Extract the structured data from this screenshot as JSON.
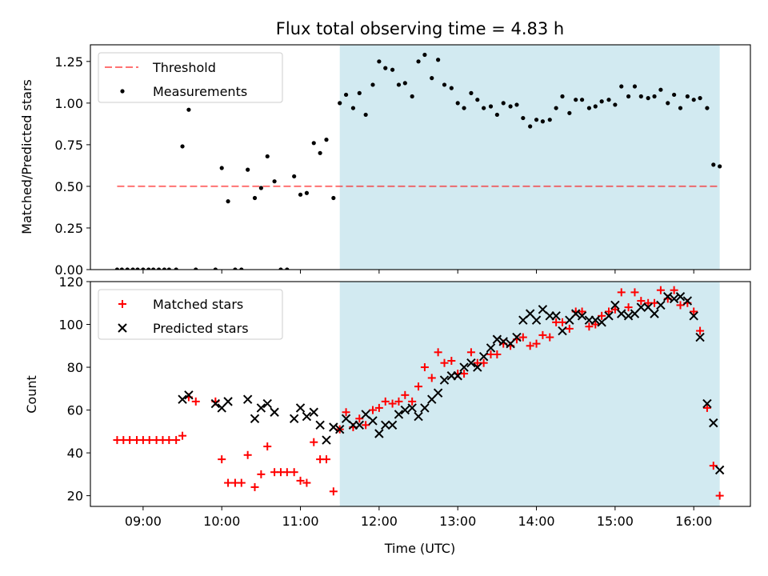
{
  "colors": {
    "shade": "#add8e6",
    "threshold": "#ff0000",
    "matched": "#ff0000",
    "predicted": "#000000",
    "measurement": "#000000"
  },
  "chart_data": [
    {
      "type": "scatter",
      "title": "Flux total observing time = 4.83 h",
      "xlabel": "",
      "ylabel": "Matched/Predicted stars",
      "xlim": [
        8.33,
        16.72
      ],
      "ylim": [
        0,
        1.35
      ],
      "yticks": [
        0,
        0.25,
        0.5,
        0.75,
        1.0,
        1.25
      ],
      "ytick_labels": [
        "0.00",
        "0.25",
        "0.50",
        "0.75",
        "1.00",
        "1.25"
      ],
      "shaded_span": [
        11.5,
        16.33
      ],
      "threshold": {
        "name": "Threshold",
        "y": 0.5,
        "x_range": [
          8.67,
          16.33
        ],
        "style": "dashed"
      },
      "legend": {
        "position": "top-left",
        "entries": [
          "Threshold",
          "Measurements"
        ]
      },
      "series": [
        {
          "name": "Measurements",
          "points": [
            [
              8.67,
              0.0
            ],
            [
              8.73,
              0.0
            ],
            [
              8.8,
              0.0
            ],
            [
              8.87,
              0.0
            ],
            [
              8.93,
              0.0
            ],
            [
              9.0,
              0.0
            ],
            [
              9.07,
              0.0
            ],
            [
              9.13,
              0.0
            ],
            [
              9.2,
              0.0
            ],
            [
              9.27,
              0.0
            ],
            [
              9.33,
              0.0
            ],
            [
              9.42,
              0.0
            ],
            [
              9.5,
              0.74
            ],
            [
              9.58,
              0.96
            ],
            [
              9.67,
              0.0
            ],
            [
              9.92,
              0.0
            ],
            [
              10.0,
              0.61
            ],
            [
              10.08,
              0.41
            ],
            [
              10.17,
              0.0
            ],
            [
              10.25,
              0.0
            ],
            [
              10.33,
              0.6
            ],
            [
              10.42,
              0.43
            ],
            [
              10.5,
              0.49
            ],
            [
              10.58,
              0.68
            ],
            [
              10.67,
              0.53
            ],
            [
              10.75,
              0.0
            ],
            [
              10.83,
              0.0
            ],
            [
              10.92,
              0.56
            ],
            [
              11.0,
              0.45
            ],
            [
              11.08,
              0.46
            ],
            [
              11.17,
              0.76
            ],
            [
              11.25,
              0.7
            ],
            [
              11.33,
              0.78
            ],
            [
              11.42,
              0.43
            ],
            [
              11.5,
              1.0
            ],
            [
              11.58,
              1.05
            ],
            [
              11.67,
              0.97
            ],
            [
              11.75,
              1.06
            ],
            [
              11.83,
              0.93
            ],
            [
              11.92,
              1.11
            ],
            [
              12.0,
              1.25
            ],
            [
              12.08,
              1.21
            ],
            [
              12.17,
              1.2
            ],
            [
              12.25,
              1.11
            ],
            [
              12.33,
              1.12
            ],
            [
              12.42,
              1.04
            ],
            [
              12.5,
              1.25
            ],
            [
              12.58,
              1.29
            ],
            [
              12.67,
              1.15
            ],
            [
              12.75,
              1.26
            ],
            [
              12.83,
              1.11
            ],
            [
              12.92,
              1.09
            ],
            [
              13.0,
              1.0
            ],
            [
              13.08,
              0.97
            ],
            [
              13.17,
              1.06
            ],
            [
              13.25,
              1.02
            ],
            [
              13.33,
              0.97
            ],
            [
              13.42,
              0.98
            ],
            [
              13.5,
              0.93
            ],
            [
              13.58,
              1.0
            ],
            [
              13.67,
              0.98
            ],
            [
              13.75,
              0.99
            ],
            [
              13.83,
              0.91
            ],
            [
              13.92,
              0.86
            ],
            [
              14.0,
              0.9
            ],
            [
              14.08,
              0.89
            ],
            [
              14.17,
              0.9
            ],
            [
              14.25,
              0.97
            ],
            [
              14.33,
              1.04
            ],
            [
              14.42,
              0.94
            ],
            [
              14.5,
              1.02
            ],
            [
              14.58,
              1.02
            ],
            [
              14.67,
              0.97
            ],
            [
              14.75,
              0.98
            ],
            [
              14.83,
              1.01
            ],
            [
              14.92,
              1.02
            ],
            [
              15.0,
              0.99
            ],
            [
              15.08,
              1.1
            ],
            [
              15.17,
              1.04
            ],
            [
              15.25,
              1.1
            ],
            [
              15.33,
              1.04
            ],
            [
              15.42,
              1.03
            ],
            [
              15.5,
              1.04
            ],
            [
              15.58,
              1.08
            ],
            [
              15.67,
              1.0
            ],
            [
              15.75,
              1.05
            ],
            [
              15.83,
              0.97
            ],
            [
              15.92,
              1.04
            ],
            [
              16.0,
              1.02
            ],
            [
              16.08,
              1.03
            ],
            [
              16.17,
              0.97
            ],
            [
              16.25,
              0.63
            ],
            [
              16.33,
              0.62
            ]
          ]
        }
      ]
    },
    {
      "type": "scatter",
      "title": "",
      "xlabel": "Time (UTC)",
      "ylabel": "Count",
      "xlim": [
        8.33,
        16.72
      ],
      "ylim": [
        15,
        120
      ],
      "xticks": [
        9,
        10,
        11,
        12,
        13,
        14,
        15,
        16
      ],
      "xtick_labels": [
        "09:00",
        "10:00",
        "11:00",
        "12:00",
        "13:00",
        "14:00",
        "15:00",
        "16:00"
      ],
      "yticks": [
        20,
        40,
        60,
        80,
        100,
        120
      ],
      "ytick_labels": [
        "20",
        "40",
        "60",
        "80",
        "100",
        "120"
      ],
      "shaded_span": [
        11.5,
        16.33
      ],
      "legend": {
        "position": "top-left",
        "entries": [
          "Matched stars",
          "Predicted stars"
        ]
      },
      "series": [
        {
          "name": "Matched stars",
          "marker": "+",
          "points": [
            [
              8.67,
              46
            ],
            [
              8.75,
              46
            ],
            [
              8.83,
              46
            ],
            [
              8.92,
              46
            ],
            [
              9.0,
              46
            ],
            [
              9.08,
              46
            ],
            [
              9.17,
              46
            ],
            [
              9.25,
              46
            ],
            [
              9.33,
              46
            ],
            [
              9.42,
              46
            ],
            [
              9.5,
              48
            ],
            [
              9.58,
              66
            ],
            [
              9.67,
              64
            ],
            [
              9.92,
              64
            ],
            [
              10.0,
              37
            ],
            [
              10.08,
              26
            ],
            [
              10.17,
              26
            ],
            [
              10.25,
              26
            ],
            [
              10.33,
              39
            ],
            [
              10.42,
              24
            ],
            [
              10.5,
              30
            ],
            [
              10.58,
              43
            ],
            [
              10.67,
              31
            ],
            [
              10.75,
              31
            ],
            [
              10.83,
              31
            ],
            [
              10.92,
              31
            ],
            [
              11.0,
              27
            ],
            [
              11.08,
              26
            ],
            [
              11.17,
              45
            ],
            [
              11.25,
              37
            ],
            [
              11.33,
              37
            ],
            [
              11.42,
              22
            ],
            [
              11.5,
              51
            ],
            [
              11.58,
              59
            ],
            [
              11.67,
              52
            ],
            [
              11.75,
              56
            ],
            [
              11.83,
              53
            ],
            [
              11.92,
              60
            ],
            [
              12.0,
              61
            ],
            [
              12.08,
              64
            ],
            [
              12.17,
              63
            ],
            [
              12.25,
              64
            ],
            [
              12.33,
              67
            ],
            [
              12.42,
              64
            ],
            [
              12.5,
              71
            ],
            [
              12.58,
              80
            ],
            [
              12.67,
              75
            ],
            [
              12.75,
              87
            ],
            [
              12.83,
              82
            ],
            [
              12.92,
              83
            ],
            [
              13.0,
              77
            ],
            [
              13.08,
              77
            ],
            [
              13.17,
              87
            ],
            [
              13.25,
              82
            ],
            [
              13.33,
              82
            ],
            [
              13.42,
              86
            ],
            [
              13.5,
              86
            ],
            [
              13.58,
              91
            ],
            [
              13.67,
              90
            ],
            [
              13.75,
              93
            ],
            [
              13.83,
              94
            ],
            [
              13.92,
              90
            ],
            [
              14.0,
              91
            ],
            [
              14.08,
              95
            ],
            [
              14.17,
              94
            ],
            [
              14.25,
              101
            ],
            [
              14.33,
              101
            ],
            [
              14.42,
              98
            ],
            [
              14.5,
              106
            ],
            [
              14.58,
              106
            ],
            [
              14.67,
              99
            ],
            [
              14.75,
              100
            ],
            [
              14.83,
              104
            ],
            [
              14.92,
              106
            ],
            [
              15.0,
              107
            ],
            [
              15.08,
              115
            ],
            [
              15.17,
              108
            ],
            [
              15.25,
              115
            ],
            [
              15.33,
              111
            ],
            [
              15.42,
              110
            ],
            [
              15.5,
              110
            ],
            [
              15.58,
              116
            ],
            [
              15.67,
              112
            ],
            [
              15.75,
              116
            ],
            [
              15.83,
              109
            ],
            [
              15.92,
              110
            ],
            [
              16.0,
              106
            ],
            [
              16.08,
              97
            ],
            [
              16.17,
              61
            ],
            [
              16.25,
              34
            ],
            [
              16.33,
              20
            ]
          ]
        },
        {
          "name": "Predicted stars",
          "marker": "x",
          "points": [
            [
              9.5,
              65
            ],
            [
              9.58,
              67
            ],
            [
              9.92,
              63
            ],
            [
              10.0,
              61
            ],
            [
              10.08,
              64
            ],
            [
              10.33,
              65
            ],
            [
              10.42,
              56
            ],
            [
              10.5,
              61
            ],
            [
              10.58,
              63
            ],
            [
              10.67,
              59
            ],
            [
              10.92,
              56
            ],
            [
              11.0,
              61
            ],
            [
              11.08,
              57
            ],
            [
              11.17,
              59
            ],
            [
              11.25,
              53
            ],
            [
              11.33,
              46
            ],
            [
              11.42,
              52
            ],
            [
              11.5,
              51
            ],
            [
              11.58,
              56
            ],
            [
              11.67,
              53
            ],
            [
              11.75,
              53
            ],
            [
              11.83,
              58
            ],
            [
              11.92,
              55
            ],
            [
              12.0,
              49
            ],
            [
              12.08,
              53
            ],
            [
              12.17,
              53
            ],
            [
              12.25,
              58
            ],
            [
              12.33,
              60
            ],
            [
              12.42,
              61
            ],
            [
              12.5,
              57
            ],
            [
              12.58,
              61
            ],
            [
              12.67,
              65
            ],
            [
              12.75,
              68
            ],
            [
              12.83,
              74
            ],
            [
              12.92,
              76
            ],
            [
              13.0,
              76
            ],
            [
              13.08,
              80
            ],
            [
              13.17,
              82
            ],
            [
              13.25,
              80
            ],
            [
              13.33,
              85
            ],
            [
              13.42,
              89
            ],
            [
              13.5,
              93
            ],
            [
              13.58,
              92
            ],
            [
              13.67,
              91
            ],
            [
              13.75,
              94
            ],
            [
              13.83,
              102
            ],
            [
              13.92,
              105
            ],
            [
              14.0,
              102
            ],
            [
              14.08,
              107
            ],
            [
              14.17,
              104
            ],
            [
              14.25,
              104
            ],
            [
              14.33,
              97
            ],
            [
              14.42,
              102
            ],
            [
              14.5,
              105
            ],
            [
              14.58,
              104
            ],
            [
              14.67,
              102
            ],
            [
              14.75,
              102
            ],
            [
              14.83,
              101
            ],
            [
              14.92,
              104
            ],
            [
              15.0,
              109
            ],
            [
              15.08,
              105
            ],
            [
              15.17,
              104
            ],
            [
              15.25,
              105
            ],
            [
              15.33,
              108
            ],
            [
              15.42,
              108
            ],
            [
              15.5,
              105
            ],
            [
              15.58,
              109
            ],
            [
              15.67,
              113
            ],
            [
              15.75,
              112
            ],
            [
              15.83,
              113
            ],
            [
              15.92,
              111
            ],
            [
              16.0,
              104
            ],
            [
              16.08,
              94
            ],
            [
              16.17,
              63
            ],
            [
              16.25,
              54
            ],
            [
              16.33,
              32
            ]
          ]
        }
      ]
    }
  ]
}
